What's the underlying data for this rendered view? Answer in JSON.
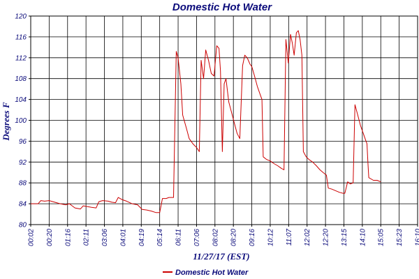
{
  "chart_data": {
    "type": "line",
    "title": "Domestic Hot Water",
    "xlabel": "11/27/17 (EST)",
    "ylabel": "Degrees F",
    "ylim": [
      80,
      120
    ],
    "yticks": [
      80,
      84,
      88,
      92,
      96,
      100,
      104,
      108,
      112,
      116,
      120
    ],
    "xticks": [
      "00:02",
      "00:20",
      "01:16",
      "02:11",
      "03:06",
      "04:01",
      "04:19",
      "05:14",
      "06:11",
      "07:06",
      "08:02",
      "08:20",
      "09:16",
      "10:12",
      "11:07",
      "12:02",
      "12:20",
      "13:15",
      "14:10",
      "15:05",
      "15:23",
      "16:10"
    ],
    "grid": true,
    "legend_position": "bottom-center",
    "colors": {
      "line": "#cc0000",
      "text": "#0a0a7a",
      "grid": "#000000"
    },
    "series": [
      {
        "name": "Domestic Hot Water",
        "values": [
          [
            0.0,
            84.0
          ],
          [
            0.4,
            84.0
          ],
          [
            0.55,
            84.6
          ],
          [
            0.75,
            84.5
          ],
          [
            1.0,
            84.6
          ],
          [
            1.3,
            84.3
          ],
          [
            1.6,
            84.0
          ],
          [
            1.9,
            83.8
          ],
          [
            2.1,
            84.0
          ],
          [
            2.4,
            83.2
          ],
          [
            2.7,
            83.0
          ],
          [
            2.85,
            83.6
          ],
          [
            3.0,
            83.5
          ],
          [
            3.3,
            83.3
          ],
          [
            3.55,
            83.2
          ],
          [
            3.7,
            84.4
          ],
          [
            3.9,
            84.6
          ],
          [
            4.2,
            84.5
          ],
          [
            4.4,
            84.3
          ],
          [
            4.6,
            84.2
          ],
          [
            4.75,
            85.2
          ],
          [
            4.95,
            84.8
          ],
          [
            5.2,
            84.5
          ],
          [
            5.5,
            84.0
          ],
          [
            5.8,
            83.8
          ],
          [
            6.05,
            82.9
          ],
          [
            6.3,
            82.8
          ],
          [
            6.55,
            82.6
          ],
          [
            6.8,
            82.3
          ],
          [
            7.0,
            82.3
          ],
          [
            7.15,
            85.0
          ],
          [
            7.35,
            85.0
          ],
          [
            7.5,
            85.2
          ],
          [
            7.75,
            85.2
          ],
          [
            7.9,
            113.2
          ],
          [
            8.0,
            112.0
          ],
          [
            8.15,
            107.0
          ],
          [
            8.25,
            101.0
          ],
          [
            8.45,
            98.5
          ],
          [
            8.6,
            96.5
          ],
          [
            8.8,
            95.5
          ],
          [
            9.0,
            94.8
          ],
          [
            9.15,
            94.0
          ],
          [
            9.25,
            111.5
          ],
          [
            9.38,
            108.0
          ],
          [
            9.5,
            113.5
          ],
          [
            9.65,
            111.5
          ],
          [
            9.8,
            109.0
          ],
          [
            9.95,
            108.5
          ],
          [
            10.1,
            114.3
          ],
          [
            10.22,
            113.8
          ],
          [
            10.3,
            109.5
          ],
          [
            10.4,
            94.0
          ],
          [
            10.5,
            107.0
          ],
          [
            10.6,
            108.0
          ],
          [
            10.75,
            103.5
          ],
          [
            10.9,
            101.5
          ],
          [
            11.05,
            99.5
          ],
          [
            11.2,
            97.5
          ],
          [
            11.35,
            96.5
          ],
          [
            11.5,
            110.5
          ],
          [
            11.62,
            112.5
          ],
          [
            11.75,
            112.0
          ],
          [
            11.9,
            110.8
          ],
          [
            12.0,
            110.3
          ],
          [
            12.15,
            108.5
          ],
          [
            12.3,
            106.5
          ],
          [
            12.45,
            105.0
          ],
          [
            12.55,
            104.0
          ],
          [
            12.62,
            93.0
          ],
          [
            12.8,
            92.5
          ],
          [
            13.0,
            92.2
          ],
          [
            13.2,
            91.7
          ],
          [
            13.4,
            91.3
          ],
          [
            13.6,
            90.8
          ],
          [
            13.75,
            90.5
          ],
          [
            13.85,
            115.5
          ],
          [
            13.98,
            111.0
          ],
          [
            14.1,
            116.5
          ],
          [
            14.2,
            114.8
          ],
          [
            14.3,
            112.5
          ],
          [
            14.42,
            116.8
          ],
          [
            14.52,
            117.2
          ],
          [
            14.62,
            115.5
          ],
          [
            14.72,
            112.5
          ],
          [
            14.8,
            94.0
          ],
          [
            14.95,
            93.0
          ],
          [
            15.1,
            92.5
          ],
          [
            15.3,
            92.0
          ],
          [
            15.5,
            91.3
          ],
          [
            15.7,
            90.5
          ],
          [
            15.9,
            89.9
          ],
          [
            16.05,
            89.5
          ],
          [
            16.15,
            87.0
          ],
          [
            16.35,
            86.8
          ],
          [
            16.55,
            86.5
          ],
          [
            16.75,
            86.2
          ],
          [
            16.95,
            86.0
          ],
          [
            17.05,
            86.0
          ],
          [
            17.2,
            88.2
          ],
          [
            17.35,
            87.8
          ],
          [
            17.5,
            88.0
          ],
          [
            17.6,
            103.0
          ],
          [
            17.75,
            101.0
          ],
          [
            17.9,
            99.0
          ],
          [
            18.05,
            97.5
          ],
          [
            18.2,
            96.0
          ],
          [
            18.25,
            95.5
          ],
          [
            18.3,
            92.0
          ],
          [
            18.35,
            89.0
          ],
          [
            18.6,
            88.5
          ],
          [
            18.8,
            88.5
          ],
          [
            19.0,
            88.2
          ]
        ]
      }
    ]
  }
}
